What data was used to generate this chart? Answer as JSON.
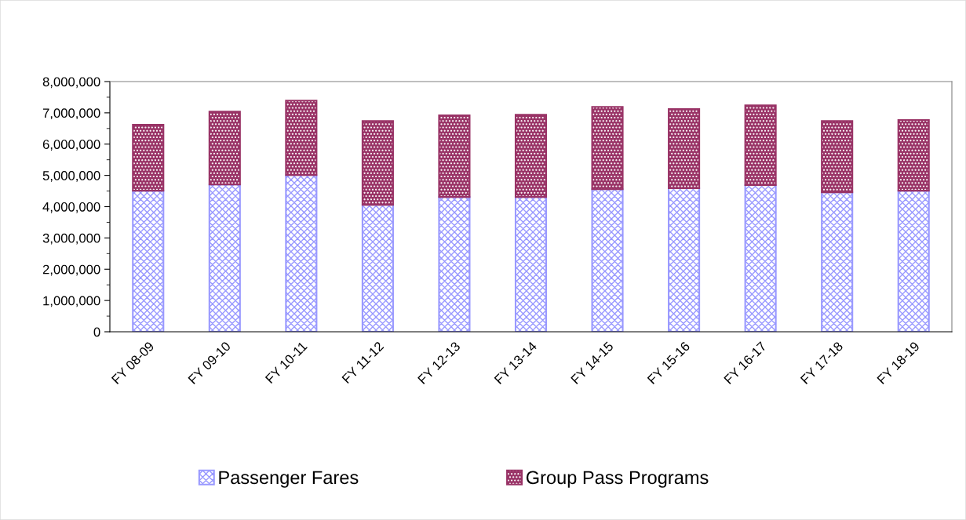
{
  "chart_data": {
    "type": "bar",
    "stacked": true,
    "categories": [
      "FY 08-09",
      "FY 09-10",
      "FY 10-11",
      "FY 11-12",
      "FY 12-13",
      "FY 13-14",
      "FY 14-15",
      "FY 15-16",
      "FY 16-17",
      "FY 17-18",
      "FY 18-19"
    ],
    "series": [
      {
        "name": "Passenger Fares",
        "color": "#9999ff",
        "values": [
          4510000,
          4710000,
          5010000,
          4060000,
          4310000,
          4310000,
          4560000,
          4590000,
          4690000,
          4460000,
          4510000
        ]
      },
      {
        "name": "Group Pass Programs",
        "color": "#993366",
        "values": [
          2110000,
          2330000,
          2380000,
          2680000,
          2610000,
          2630000,
          2630000,
          2530000,
          2550000,
          2280000,
          2260000
        ]
      }
    ],
    "ylim": [
      0,
      8000000
    ],
    "yticks": [
      {
        "value": 0,
        "label": "0"
      },
      {
        "value": 1000000,
        "label": "1,000,000"
      },
      {
        "value": 2000000,
        "label": "2,000,000"
      },
      {
        "value": 3000000,
        "label": "3,000,000"
      },
      {
        "value": 4000000,
        "label": "4,000,000"
      },
      {
        "value": 5000000,
        "label": "5,000,000"
      },
      {
        "value": 6000000,
        "label": "6,000,000"
      },
      {
        "value": 7000000,
        "label": "7,000,000"
      },
      {
        "value": 8000000,
        "label": "8,000,000"
      }
    ],
    "grid": false,
    "legend": "bottom"
  }
}
